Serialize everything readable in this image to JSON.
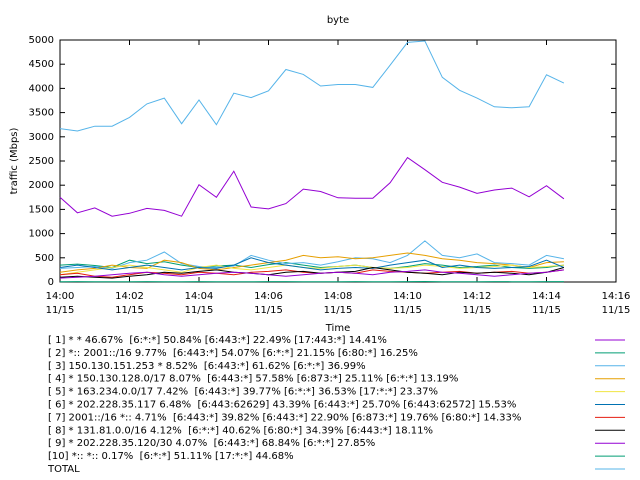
{
  "chart_data": {
    "type": "line",
    "title": "byte",
    "xlabel": "Time",
    "ylabel": "traffic (Mbps)",
    "x": [
      0,
      0.5,
      1,
      1.5,
      2,
      2.5,
      3,
      3.5,
      4,
      4.5,
      5,
      5.5,
      6,
      6.5,
      7,
      7.5,
      8,
      8.5,
      9,
      9.5,
      10,
      10.5,
      11,
      11.5,
      12,
      12.5,
      13,
      13.5,
      14,
      14.5
    ],
    "xlim": [
      0,
      16
    ],
    "xticks": [
      {
        "value": 0,
        "label": "14:00\n11/15"
      },
      {
        "value": 2,
        "label": "14:02\n11/15"
      },
      {
        "value": 4,
        "label": "14:04\n11/15"
      },
      {
        "value": 6,
        "label": "14:06\n11/15"
      },
      {
        "value": 8,
        "label": "14:08\n11/15"
      },
      {
        "value": 10,
        "label": "14:10\n11/15"
      },
      {
        "value": 12,
        "label": "14:12\n11/15"
      },
      {
        "value": 14,
        "label": "14:14\n11/15"
      },
      {
        "value": 16,
        "label": "14:16\n11/15"
      }
    ],
    "ylim": [
      0,
      5000
    ],
    "yticks": [
      0,
      500,
      1000,
      1500,
      2000,
      2500,
      3000,
      3500,
      4000,
      4500,
      5000
    ],
    "series": [
      {
        "name": "[ 1] * * 46.67%  [6:*:*] 50.84% [6:443:*] 22.49% [17:443:*] 14.41%",
        "color": "#9400d3",
        "values": [
          1750,
          1430,
          1530,
          1360,
          1420,
          1520,
          1480,
          1360,
          2010,
          1750,
          2290,
          1550,
          1510,
          1620,
          1920,
          1870,
          1740,
          1730,
          1730,
          2050,
          2570,
          2320,
          2060,
          1960,
          1830,
          1900,
          1940,
          1760,
          1990,
          1720
        ]
      },
      {
        "name": "[ 2] *:: 2001::/16 9.77%  [6:443:*] 54.07% [6:*:*] 21.15% [6:80:*] 16.25%",
        "color": "#009e73",
        "values": [
          350,
          370,
          340,
          300,
          450,
          380,
          420,
          350,
          300,
          330,
          350,
          300,
          360,
          400,
          350,
          300,
          320,
          350,
          300,
          280,
          320,
          380,
          350,
          300,
          320,
          350,
          300,
          280,
          300,
          350
        ]
      },
      {
        "name": "[ 3] 150.130.151.253 * 8.52%  [6:443:*] 61.62% [6:*:*] 36.99%",
        "color": "#56b4e9",
        "values": [
          280,
          300,
          320,
          280,
          400,
          450,
          620,
          380,
          320,
          300,
          330,
          550,
          450,
          380,
          400,
          350,
          420,
          500,
          480,
          400,
          550,
          850,
          550,
          500,
          580,
          400,
          380,
          350,
          550,
          480
        ]
      },
      {
        "name": "[ 4] * 150.130.128.0/17 8.07%  [6:443:*] 57.58% [6:873:*] 25.11% [6:*:*] 13.19%",
        "color": "#e69f00",
        "values": [
          200,
          250,
          280,
          350,
          300,
          280,
          450,
          400,
          280,
          250,
          300,
          350,
          400,
          450,
          550,
          500,
          520,
          480,
          500,
          550,
          600,
          550,
          480,
          450,
          400,
          380,
          350,
          300,
          400,
          420
        ]
      },
      {
        "name": "[ 5] * 163.234.0.0/17 7.42%  [6:443:*] 39.77% [6:*:*] 36.53% [17:*:*] 23.37%",
        "color": "#f0e442",
        "values": [
          150,
          200,
          250,
          300,
          350,
          300,
          250,
          200,
          300,
          350,
          280,
          250,
          300,
          350,
          300,
          280,
          320,
          350,
          300,
          280,
          300,
          350,
          320,
          280,
          300,
          320,
          350,
          300,
          320,
          350
        ]
      },
      {
        "name": "[ 6] * 202.228.35.117 6.48%  [6:443:62629] 43.39% [6:443:*] 25.70% [6:443:62572] 15.53%",
        "color": "#0072b2",
        "values": [
          300,
          350,
          300,
          250,
          300,
          350,
          300,
          250,
          300,
          280,
          350,
          500,
          400,
          350,
          300,
          250,
          280,
          300,
          280,
          350,
          400,
          450,
          300,
          350,
          300,
          280,
          300,
          320,
          450,
          300
        ]
      },
      {
        "name": "[ 7] 2001::/16 *:: 4.71%  [6:443:*] 39.82% [6:443:*] 22.90% [6:873:*] 19.76% [6:80:*] 14.33%",
        "color": "#e51e10",
        "values": [
          150,
          180,
          120,
          100,
          150,
          200,
          180,
          150,
          200,
          180,
          150,
          200,
          220,
          250,
          200,
          180,
          200,
          180,
          250,
          220,
          200,
          180,
          200,
          220,
          180,
          200,
          220,
          180,
          200,
          250
        ]
      },
      {
        "name": "[ 8] * 131.81.0.0/16 4.12%  [6:*:*] 40.62% [6:80:*] 34.39% [6:443:*] 18.11%",
        "color": "#000000",
        "values": [
          100,
          120,
          100,
          80,
          120,
          150,
          200,
          180,
          220,
          250,
          200,
          180,
          150,
          200,
          220,
          180,
          200,
          220,
          300,
          250,
          200,
          180,
          150,
          200,
          180,
          200,
          180,
          150,
          200,
          300
        ]
      },
      {
        "name": "[ 9] * 202.228.35.120/30 4.07%  [6:443:*] 68.84% [6:*:*] 27.85%",
        "color": "#9400d3",
        "values": [
          80,
          100,
          120,
          150,
          180,
          200,
          150,
          120,
          150,
          180,
          200,
          180,
          150,
          120,
          150,
          180,
          200,
          180,
          150,
          200,
          220,
          250,
          200,
          180,
          150,
          120,
          150,
          180,
          200,
          250
        ]
      },
      {
        "name": "[10] *:: *:: 0.17%  [6:*:*] 51.11% [17:*:*] 44.68%",
        "color": "#009e73",
        "values": [
          5,
          8,
          6,
          5,
          7,
          9,
          6,
          5,
          8,
          7,
          6,
          5,
          8,
          9,
          7,
          6,
          5,
          8,
          7,
          6,
          9,
          10,
          7,
          6,
          5,
          8,
          7,
          6,
          9,
          8
        ]
      },
      {
        "name": "TOTAL",
        "color": "#56b4e9",
        "values": [
          3170,
          3120,
          3220,
          3220,
          3400,
          3680,
          3800,
          3270,
          3760,
          3250,
          3900,
          3810,
          3950,
          4390,
          4290,
          4050,
          4080,
          4080,
          4020,
          4480,
          4950,
          4980,
          4230,
          3960,
          3800,
          3620,
          3600,
          3620,
          4280,
          4110
        ]
      }
    ]
  }
}
